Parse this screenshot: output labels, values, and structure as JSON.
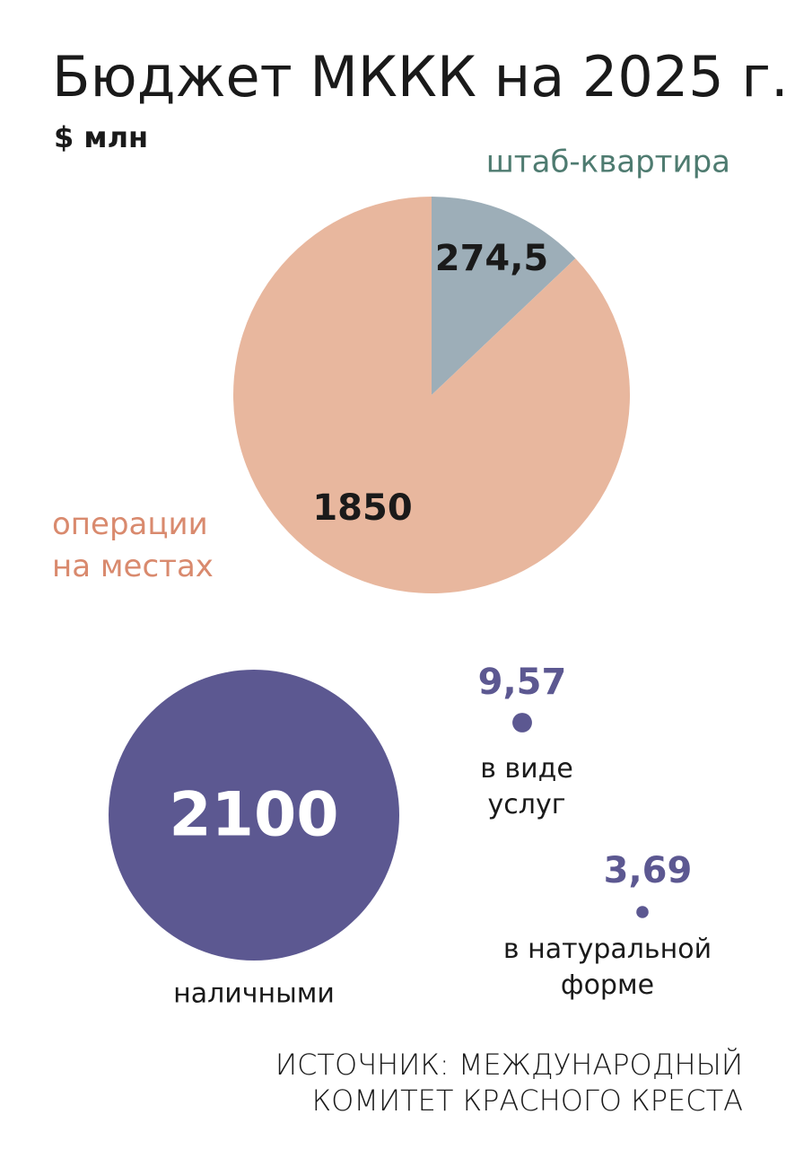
{
  "chart_data": [
    {
      "type": "pie",
      "title": "Бюджет МККК на 2025 г.",
      "subtitle": "$ млн",
      "categories": [
        "штаб-квартира",
        "операции\nна местах"
      ],
      "values": [
        274.5,
        1850
      ],
      "value_labels": [
        "274,5",
        "1850"
      ],
      "colors": [
        "#9daeb8",
        "#e8b79e"
      ],
      "label_colors": [
        "#4e7b70",
        "#d98a6e"
      ]
    },
    {
      "type": "bubble",
      "categories": [
        "наличными",
        "в виде\nуслуг",
        "в натуральной\nформе"
      ],
      "values": [
        2100,
        9.57,
        3.69
      ],
      "value_labels": [
        "2100",
        "9,57",
        "3,69"
      ],
      "color": "#5c5891"
    }
  ],
  "source": "ИСТОЧНИК: МЕЖДУНАРОДНЫЙ\nКОМИТЕТ КРАСНОГО КРЕСТА"
}
